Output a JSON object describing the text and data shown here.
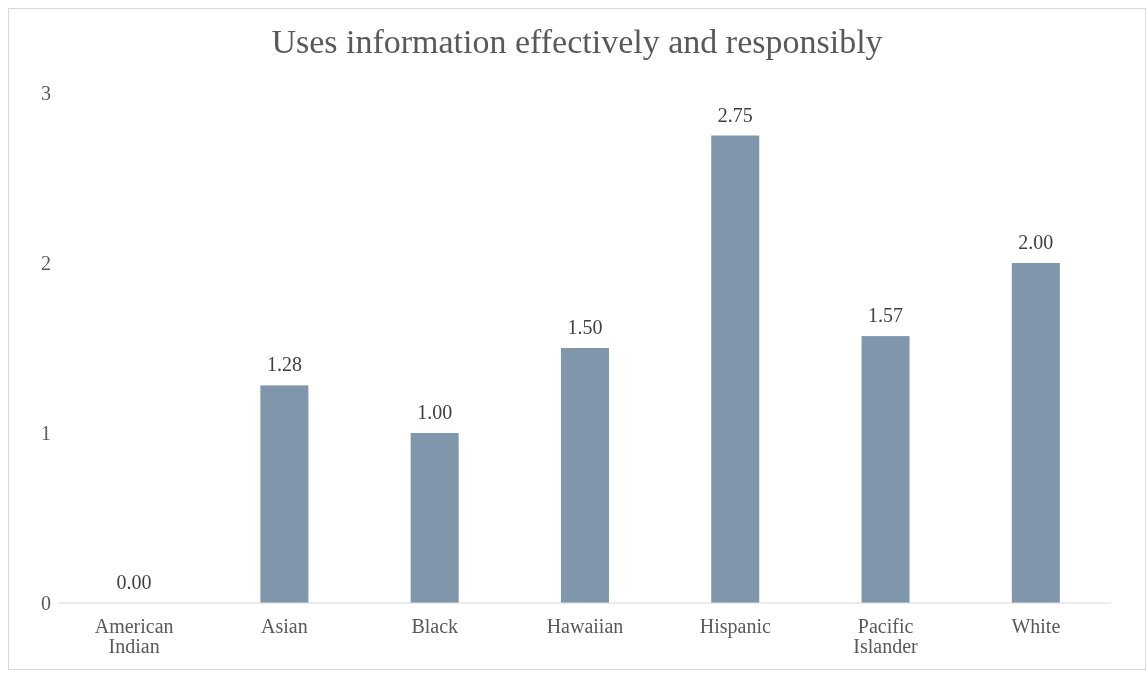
{
  "chart_data": {
    "type": "bar",
    "title": "Uses information effectively and responsibly",
    "categories": [
      "American Indian",
      "Asian",
      "Black",
      "Hawaiian",
      "Hispanic",
      "Pacific Islander",
      "White"
    ],
    "values": [
      0,
      1.28,
      1,
      1.5,
      2.75,
      1.57,
      2
    ],
    "value_labels": [
      "0.00",
      "1.28",
      "1.00",
      "1.50",
      "2.75",
      "1.57",
      "2.00"
    ],
    "color": "#7f96ab",
    "ylim": [
      0,
      3
    ],
    "yticks": [
      0,
      1,
      2,
      3
    ],
    "grid": false,
    "legend": false
  }
}
